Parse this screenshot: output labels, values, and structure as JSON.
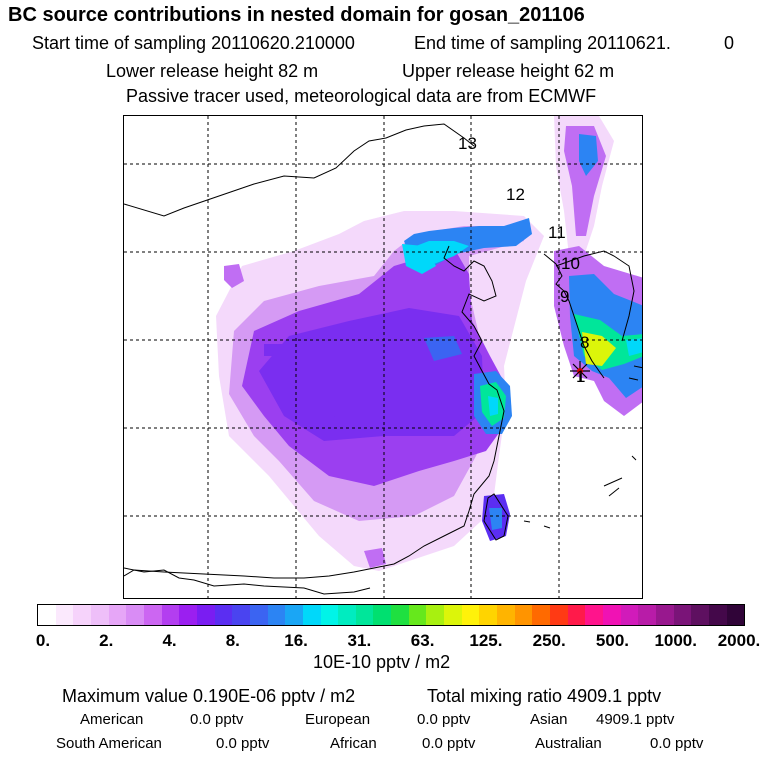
{
  "header": {
    "title": "BC  source contributions in nested domain for gosan_201106",
    "start_sampling": "Start time of sampling 20110620.210000",
    "end_sampling": "End time of sampling 20110621.",
    "end_sampling_suffix": "0",
    "lower_release": "Lower release height   82 m",
    "upper_release": "Upper release height   62 m",
    "tracer_note": "Passive tracer used, meteorological data are from ECMWF"
  },
  "map": {
    "trajectory_labels": [
      "13",
      "12",
      "11",
      "10",
      "9",
      "8",
      "1"
    ]
  },
  "colorbar": {
    "colors": [
      "#ffffff",
      "#fbe9fd",
      "#f6d3fb",
      "#eebff9",
      "#e6a6f7",
      "#d98cf5",
      "#cc66f2",
      "#b33ef0",
      "#9b1ff0",
      "#7a1df2",
      "#5b2ef2",
      "#4a44f0",
      "#3b64f2",
      "#2c84f3",
      "#1aa6f5",
      "#00d8fa",
      "#00f4e8",
      "#00ecc0",
      "#00e69a",
      "#00e070",
      "#1fe040",
      "#66e81c",
      "#a8f010",
      "#dcf50a",
      "#fff20a",
      "#ffd400",
      "#ffb400",
      "#ff9400",
      "#ff6a00",
      "#ff3a14",
      "#ff1a4a",
      "#ff148c",
      "#f012b4",
      "#d11bba",
      "#b81ca8",
      "#98188e",
      "#7a1478",
      "#5e1060",
      "#44084a",
      "#300438"
    ],
    "ticks": [
      "0.",
      "2.",
      "4.",
      "8.",
      "16.",
      "31.",
      "63.",
      "125.",
      "250.",
      "500.",
      "1000.",
      "2000."
    ],
    "unit": "10E-10 pptv / m2"
  },
  "stats": {
    "max_value": "Maximum value  0.190E-06 pptv / m2",
    "total_mixing": "Total mixing ratio     4909.1 pptv",
    "regions": [
      {
        "label": "American",
        "value": "0.0 pptv"
      },
      {
        "label": "European",
        "value": "0.0 pptv"
      },
      {
        "label": "Asian",
        "value": "4909.1 pptv"
      },
      {
        "label": "South American",
        "value": "0.0 pptv"
      },
      {
        "label": "African",
        "value": "0.0 pptv"
      },
      {
        "label": "Australian",
        "value": "0.0 pptv"
      }
    ]
  }
}
